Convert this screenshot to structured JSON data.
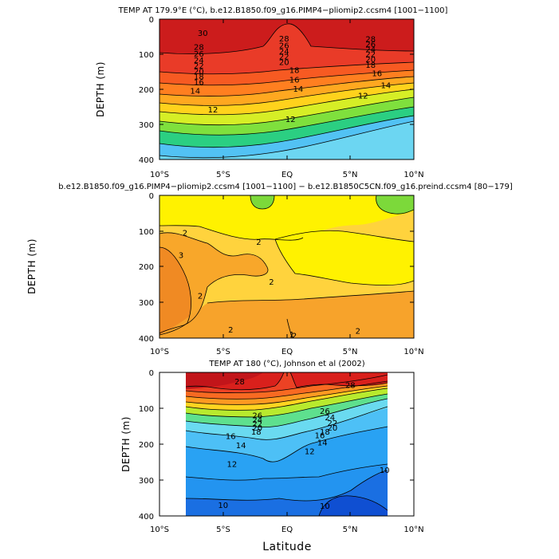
{
  "figure": {
    "xlabel": "Latitude"
  },
  "chart_data": [
    {
      "type": "heatmap",
      "title": "TEMP AT 179.9°E (°C), b.e12.B1850.f09_g16.PIMP4−pliomip2.ccsm4 [1001−1100]",
      "xlabel": "Latitude",
      "ylabel": "DEPTH (m)",
      "xlim": [
        -10,
        10
      ],
      "ylim": [
        400,
        0
      ],
      "xticks": [
        "10°S",
        "5°S",
        "EQ",
        "5°N",
        "10°N"
      ],
      "yticks": [
        "0",
        "100",
        "200",
        "300",
        "400"
      ],
      "contour_interval": 2,
      "contour_labels": [
        {
          "value": "30",
          "lat": -6.6,
          "depth": 40
        },
        {
          "value": "28",
          "lat": -6.9,
          "depth": 80
        },
        {
          "value": "28",
          "lat": -0.2,
          "depth": 56
        },
        {
          "value": "28",
          "lat": 6.6,
          "depth": 57
        },
        {
          "value": "26",
          "lat": -6.9,
          "depth": 99
        },
        {
          "value": "26",
          "lat": -0.2,
          "depth": 75
        },
        {
          "value": "26",
          "lat": 6.6,
          "depth": 72
        },
        {
          "value": "24",
          "lat": -6.9,
          "depth": 117
        },
        {
          "value": "24",
          "lat": -0.2,
          "depth": 92
        },
        {
          "value": "24",
          "lat": 6.6,
          "depth": 86
        },
        {
          "value": "22",
          "lat": -6.9,
          "depth": 133
        },
        {
          "value": "22",
          "lat": -0.2,
          "depth": 107
        },
        {
          "value": "22",
          "lat": 6.6,
          "depth": 100
        },
        {
          "value": "20",
          "lat": -6.9,
          "depth": 149
        },
        {
          "value": "20",
          "lat": -0.2,
          "depth": 123
        },
        {
          "value": "20",
          "lat": 6.6,
          "depth": 115
        },
        {
          "value": "18",
          "lat": -6.9,
          "depth": 164
        },
        {
          "value": "18",
          "lat": 0.6,
          "depth": 145
        },
        {
          "value": "18",
          "lat": 6.6,
          "depth": 131
        },
        {
          "value": "16",
          "lat": -6.9,
          "depth": 180
        },
        {
          "value": "16",
          "lat": 0.6,
          "depth": 173
        },
        {
          "value": "16",
          "lat": 7.1,
          "depth": 154
        },
        {
          "value": "14",
          "lat": -7.2,
          "depth": 205
        },
        {
          "value": "14",
          "lat": 0.9,
          "depth": 199
        },
        {
          "value": "14",
          "lat": 7.8,
          "depth": 189
        },
        {
          "value": "12",
          "lat": -5.8,
          "depth": 258
        },
        {
          "value": "12",
          "lat": 0.3,
          "depth": 285
        },
        {
          "value": "12",
          "lat": 6.0,
          "depth": 218
        }
      ]
    },
    {
      "type": "heatmap",
      "title": "b.e12.B1850.f09_g16.PIMP4−pliomip2.ccsm4 [1001−1100] − b.e12.B1850C5CN.f09_g16.preind.ccsm4 [80−179]",
      "xlabel": "",
      "ylabel": "DEPTH (m)",
      "xlim": [
        -10,
        10
      ],
      "ylim": [
        400,
        0
      ],
      "xticks": [
        "10°S",
        "5°S",
        "EQ",
        "5°N",
        "10°N"
      ],
      "yticks": [
        "0",
        "100",
        "200",
        "300",
        "400"
      ],
      "contour_interval": 1,
      "contour_labels": [
        {
          "value": "2",
          "lat": -8.0,
          "depth": 105
        },
        {
          "value": "3",
          "lat": -8.3,
          "depth": 168
        },
        {
          "value": "2",
          "lat": -2.2,
          "depth": 131
        },
        {
          "value": "2",
          "lat": -1.2,
          "depth": 242
        },
        {
          "value": "2",
          "lat": -6.8,
          "depth": 282
        },
        {
          "value": "2",
          "lat": -4.4,
          "depth": 377
        },
        {
          "value": "2",
          "lat": 0.6,
          "depth": 393
        },
        {
          "value": "1",
          "lat": 0.4,
          "depth": 390
        },
        {
          "value": "2",
          "lat": 5.6,
          "depth": 380
        }
      ]
    },
    {
      "type": "heatmap",
      "title": "TEMP AT 180 (°C), Johnson et al (2002)",
      "xlabel": "Latitude",
      "ylabel": "DEPTH (m)",
      "xlim": [
        -10,
        10
      ],
      "ylim": [
        400,
        0
      ],
      "data_lat_range": [
        -8,
        8
      ],
      "xticks": [
        "10°S",
        "5°S",
        "EQ",
        "5°N",
        "10°N"
      ],
      "yticks": [
        "0",
        "100",
        "200",
        "300",
        "400"
      ],
      "contour_interval": 1,
      "contour_labels": [
        {
          "value": "28",
          "lat": -3.7,
          "depth": 25
        },
        {
          "value": "28",
          "lat": 5.0,
          "depth": 35
        },
        {
          "value": "26",
          "lat": -2.3,
          "depth": 120
        },
        {
          "value": "26",
          "lat": 3.0,
          "depth": 108
        },
        {
          "value": "24",
          "lat": -2.3,
          "depth": 132
        },
        {
          "value": "24",
          "lat": 3.4,
          "depth": 125
        },
        {
          "value": "22",
          "lat": -2.3,
          "depth": 143
        },
        {
          "value": "22",
          "lat": 3.6,
          "depth": 141
        },
        {
          "value": "20",
          "lat": -2.3,
          "depth": 154
        },
        {
          "value": "20",
          "lat": 3.6,
          "depth": 154
        },
        {
          "value": "18",
          "lat": -2.4,
          "depth": 165
        },
        {
          "value": "18",
          "lat": 3.0,
          "depth": 166
        },
        {
          "value": "16",
          "lat": -4.4,
          "depth": 178
        },
        {
          "value": "16",
          "lat": 2.6,
          "depth": 175
        },
        {
          "value": "14",
          "lat": -3.6,
          "depth": 203
        },
        {
          "value": "14",
          "lat": 2.8,
          "depth": 195
        },
        {
          "value": "12",
          "lat": -4.3,
          "depth": 256
        },
        {
          "value": "12",
          "lat": 1.8,
          "depth": 220
        },
        {
          "value": "10",
          "lat": -5.0,
          "depth": 370
        },
        {
          "value": "10",
          "lat": 3.0,
          "depth": 372
        },
        {
          "value": "10",
          "lat": 7.7,
          "depth": 272
        }
      ]
    }
  ]
}
